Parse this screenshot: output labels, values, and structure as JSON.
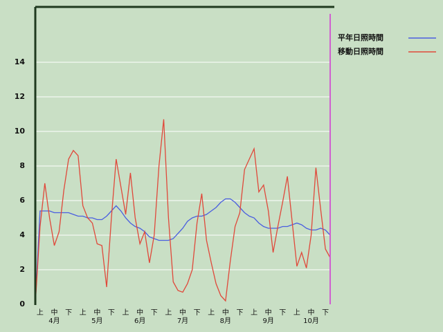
{
  "chart_data": {
    "type": "line",
    "categories": [
      null,
      "上",
      null,
      null,
      "中",
      null,
      null,
      "下",
      null,
      null,
      "上",
      null,
      null,
      "中",
      null,
      null,
      "下",
      null,
      null,
      "上",
      null,
      null,
      "中",
      null,
      null,
      "下",
      null,
      null,
      "上",
      null,
      null,
      "中",
      null,
      null,
      "下",
      null,
      null,
      "上",
      null,
      null,
      "中",
      null,
      null,
      "下",
      null,
      null,
      "上",
      null,
      null,
      "中",
      null,
      null,
      "下",
      null,
      null,
      "上",
      null,
      null,
      "中",
      null,
      null,
      "下",
      null
    ],
    "months": [
      "4月",
      "5月",
      "6月",
      "7月",
      "8月",
      "9月",
      "10月"
    ],
    "series": [
      {
        "name": "平年日照時間",
        "color": "#4a5ee0",
        "values": [
          0,
          5.4,
          5.4,
          5.4,
          5.3,
          5.3,
          5.3,
          5.3,
          5.2,
          5.1,
          5.1,
          5.0,
          5.0,
          4.9,
          4.9,
          5.1,
          5.4,
          5.7,
          5.4,
          5.0,
          4.7,
          4.5,
          4.4,
          4.2,
          3.9,
          3.8,
          3.7,
          3.7,
          3.7,
          3.8,
          4.1,
          4.4,
          4.8,
          5.0,
          5.1,
          5.1,
          5.2,
          5.4,
          5.6,
          5.9,
          6.1,
          6.1,
          5.9,
          5.6,
          5.3,
          5.1,
          5.0,
          4.7,
          4.5,
          4.4,
          4.4,
          4.4,
          4.5,
          4.5,
          4.6,
          4.7,
          4.6,
          4.4,
          4.3,
          4.3,
          4.4,
          4.3,
          4.0
        ]
      },
      {
        "name": "移動日照時間",
        "color": "#e0483a",
        "values": [
          0,
          4.5,
          7.0,
          5.0,
          3.4,
          4.2,
          6.6,
          8.4,
          8.9,
          8.6,
          5.7,
          5.0,
          4.7,
          3.5,
          3.4,
          1.0,
          5.0,
          8.4,
          6.8,
          5.2,
          7.6,
          5.0,
          3.5,
          4.2,
          2.4,
          4.0,
          8.0,
          10.7,
          5.0,
          1.3,
          0.8,
          0.7,
          1.2,
          2.0,
          4.7,
          6.4,
          3.7,
          2.4,
          1.2,
          0.5,
          0.2,
          2.5,
          4.5,
          5.3,
          7.8,
          8.4,
          9.0,
          6.5,
          6.9,
          5.4,
          3.0,
          4.5,
          5.9,
          7.4,
          4.8,
          2.2,
          3.0,
          2.1,
          4.0,
          7.9,
          5.5,
          3.2,
          2.7
        ]
      }
    ],
    "ylim": [
      0,
      17.2
    ],
    "yticks": [
      0,
      2,
      4,
      6,
      8,
      10,
      12,
      14
    ],
    "grid": true
  }
}
